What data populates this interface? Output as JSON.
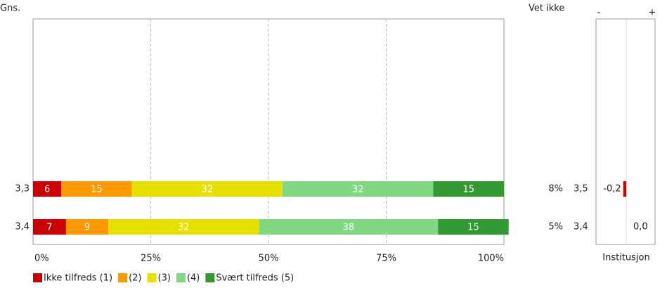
{
  "chart_data": {
    "type": "bar",
    "orientation": "horizontal",
    "stacked": true,
    "ylabel": "Gns.",
    "categories": [
      "3,3",
      "3,4"
    ],
    "series": [
      {
        "name": "Ikke tilfreds (1)",
        "color": "#cc0000",
        "values": [
          6,
          7
        ]
      },
      {
        "name": "(2)",
        "color": "#ff9900",
        "values": [
          15,
          9
        ]
      },
      {
        "name": "(3)",
        "color": "#e8e000",
        "values": [
          32,
          32
        ]
      },
      {
        "name": "(4)",
        "color": "#80d880",
        "values": [
          32,
          38
        ]
      },
      {
        "name": "Svært tilfreds (5)",
        "color": "#339933",
        "values": [
          15,
          15
        ]
      }
    ],
    "xlim": [
      0,
      100
    ],
    "xticks": [
      {
        "value": 0,
        "label": "0%"
      },
      {
        "value": 25,
        "label": "25%"
      },
      {
        "value": 50,
        "label": "50%"
      },
      {
        "value": 75,
        "label": "75%"
      },
      {
        "value": 100,
        "label": "100%"
      }
    ],
    "grid": true,
    "legend": "bottom",
    "dont_know": {
      "title": "Vet ikke",
      "values": [
        8,
        5
      ],
      "value_labels": [
        "8%",
        "5%"
      ]
    },
    "institution": {
      "title": "Institusjon",
      "values": [
        3.5,
        3.4
      ],
      "value_labels": [
        "3,5",
        "3,4"
      ],
      "diff": {
        "values": [
          -0.2,
          0.0
        ],
        "value_labels": [
          "-0,2",
          "0,0"
        ],
        "lim": [
          -2,
          2
        ],
        "neg_label": "-",
        "pos_label": "+",
        "color": "#cc0000"
      }
    }
  }
}
